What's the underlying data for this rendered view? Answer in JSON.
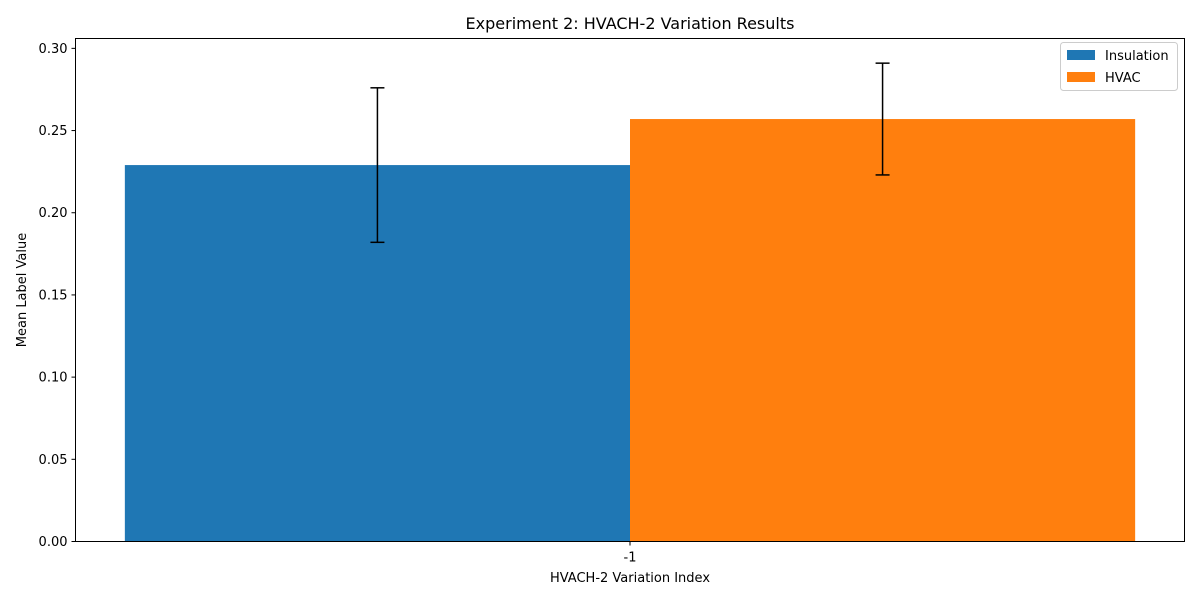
{
  "chart_data": {
    "type": "bar",
    "title": "Experiment 2: HVACH-2 Variation Results",
    "xlabel": "HVACH-2 Variation Index",
    "ylabel": "Mean Label Value",
    "categories": [
      "-1"
    ],
    "ylim": [
      0,
      0.306
    ],
    "yticks": [
      "0.00",
      "0.05",
      "0.10",
      "0.15",
      "0.20",
      "0.25",
      "0.30"
    ],
    "ytick_values": [
      0,
      0.05,
      0.1,
      0.15,
      0.2,
      0.25,
      0.3
    ],
    "grid": false,
    "legend_position": "top-right",
    "series": [
      {
        "name": "Insulation",
        "values": [
          0.229
        ],
        "error": [
          0.047
        ],
        "color": "#1f77b4"
      },
      {
        "name": "HVAC",
        "values": [
          0.257
        ],
        "error": [
          0.034
        ],
        "color": "#ff7f0e"
      }
    ]
  }
}
